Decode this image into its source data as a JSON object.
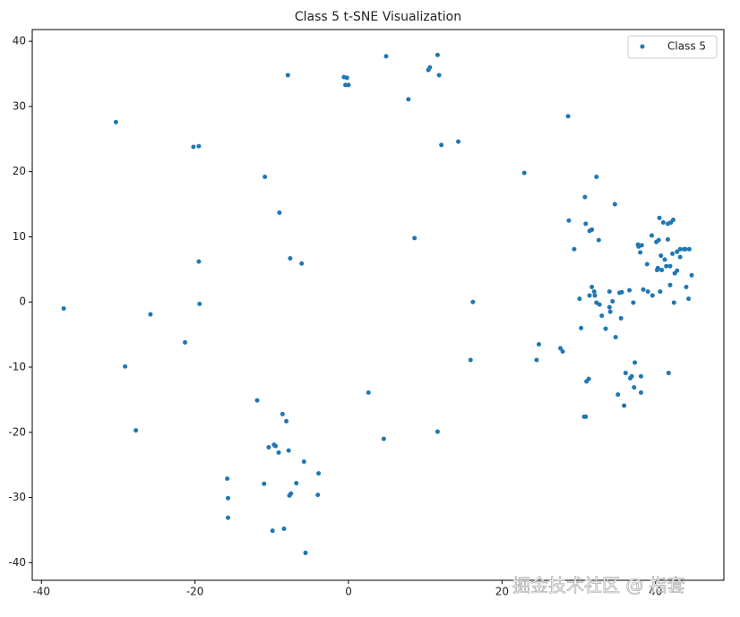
{
  "chart_data": {
    "type": "scatter",
    "title": "Class 5 t-SNE Visualization",
    "xlim": [
      -41.2,
      48.9
    ],
    "ylim": [
      -42.7,
      41.8
    ],
    "xticks": [
      -40,
      -20,
      0,
      20,
      40
    ],
    "yticks": [
      -40,
      -30,
      -20,
      -10,
      0,
      10,
      20,
      30,
      40
    ],
    "legend": "upper right",
    "grid": false,
    "series": [
      {
        "name": "Class 5",
        "color": "#1f77b4",
        "x": [
          -37.1,
          -30.3,
          -29.1,
          -27.7,
          -25.8,
          -21.3,
          -20.2,
          -19.5,
          -19.5,
          -19.4,
          -15.8,
          -15.7,
          -15.7,
          -11.9,
          -10.9,
          -11.0,
          -10.4,
          -9.9,
          -9.7,
          -9.5,
          -9.0,
          -9.1,
          -8.6,
          -8.4,
          -8.1,
          -7.9,
          -7.8,
          -7.6,
          -7.7,
          -7.5,
          -6.8,
          -6.1,
          -5.8,
          -5.6,
          -3.9,
          -4.0,
          -0.6,
          -0.2,
          -0.4,
          0,
          2.6,
          4.6,
          4.9,
          7.8,
          8.6,
          10.4,
          10.6,
          11.6,
          11.6,
          11.8,
          12.1,
          14.3,
          15.9,
          16.2,
          22.9,
          24.5,
          24.8,
          27.6,
          27.9,
          28.6,
          28.7,
          29.4,
          30.1,
          30.3,
          30.7,
          30.9,
          30.8,
          30.9,
          31.0,
          31.3,
          31.4,
          31.4,
          31.7,
          31.7,
          32.0,
          32.3,
          32.1,
          32.3,
          32.6,
          32.7,
          33.0,
          33.5,
          34.0,
          34.0,
          34.1,
          34.4,
          34.7,
          34.8,
          35.1,
          35.3,
          35.5,
          35.6,
          35.9,
          36.1,
          36.6,
          36.7,
          36.9,
          37.1,
          37.2,
          37.3,
          37.7,
          37.8,
          38.0,
          38.2,
          38.1,
          38.1,
          38.4,
          38.9,
          39.0,
          39.5,
          39.6,
          40.1,
          40.2,
          40.3,
          40.4,
          40.5,
          40.6,
          40.7,
          40.8,
          41.0,
          41.2,
          41.4,
          41.6,
          41.6,
          41.7,
          41.9,
          41.9,
          42.0,
          42.2,
          42.3,
          42.4,
          42.5,
          42.8,
          42.8,
          43.2,
          43.2,
          43.7,
          43.9,
          44.0,
          44.3,
          44.4,
          44.7
        ],
        "values": [
          -1.0,
          27.6,
          -9.9,
          -19.7,
          -1.9,
          -6.2,
          23.8,
          23.9,
          6.2,
          -0.3,
          -27.1,
          -30.1,
          -33.1,
          -15.1,
          19.2,
          -27.9,
          -22.3,
          -35.1,
          -21.9,
          -22.1,
          13.7,
          -23.1,
          -17.2,
          -34.8,
          -18.3,
          34.8,
          -22.8,
          6.7,
          -29.7,
          -29.4,
          -27.8,
          5.9,
          -24.5,
          -38.5,
          -26.3,
          -29.6,
          34.5,
          34.4,
          33.3,
          33.3,
          -13.9,
          -21.0,
          37.7,
          31.1,
          9.8,
          35.6,
          36.0,
          37.9,
          -19.9,
          34.8,
          24.1,
          24.6,
          -8.9,
          0,
          19.8,
          -8.9,
          -6.5,
          -7.1,
          -7.6,
          28.5,
          12.5,
          8.1,
          0.5,
          -4.0,
          -17.6,
          -17.6,
          16.1,
          12.0,
          -12.2,
          -11.8,
          1.0,
          10.9,
          11.1,
          2.3,
          1.6,
          19.2,
          1.0,
          -0.1,
          9.5,
          -0.4,
          -2.1,
          -4.1,
          1.6,
          -0.8,
          -1.5,
          0.1,
          15.0,
          -5.4,
          -14.2,
          1.4,
          -2.5,
          1.5,
          -15.9,
          -10.9,
          1.8,
          -11.7,
          -11.4,
          -0.1,
          -13.1,
          -9.3,
          8.8,
          8.5,
          7.6,
          8.7,
          -13.9,
          -11.4,
          1.9,
          5.8,
          1.6,
          10.2,
          1.0,
          9.2,
          4.9,
          5.2,
          9.5,
          12.9,
          1.6,
          7.1,
          4.9,
          12.2,
          6.5,
          5.5,
          9.6,
          12.0,
          -10.9,
          5.5,
          2.6,
          12.2,
          7.4,
          12.6,
          -0.1,
          4.4,
          7.7,
          4.8,
          8.1,
          6.9,
          8.1,
          8.1,
          2.3,
          0.5,
          8.1,
          4.1
        ]
      }
    ],
    "watermark": "掘金技术社区 @ 指套"
  }
}
